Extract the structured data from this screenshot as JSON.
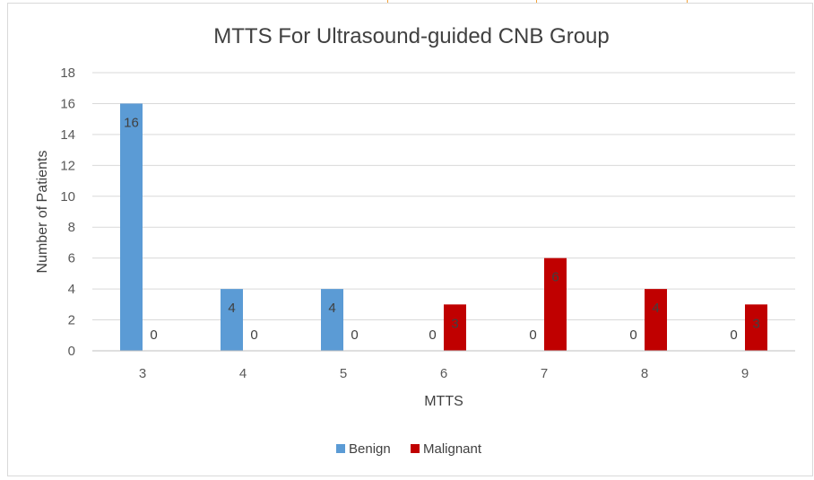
{
  "chart_data": {
    "type": "bar",
    "title": "MTTS For Ultrasound-guided CNB Group",
    "xlabel": "MTTS",
    "ylabel": "Number of Patients",
    "categories": [
      "3",
      "4",
      "5",
      "6",
      "7",
      "8",
      "9"
    ],
    "series": [
      {
        "name": "Benign",
        "color": "#5b9bd5",
        "values": [
          16,
          4,
          4,
          0,
          0,
          0,
          0
        ]
      },
      {
        "name": "Malignant",
        "color": "#c00000",
        "values": [
          0,
          0,
          0,
          3,
          6,
          4,
          3
        ]
      }
    ],
    "ylim": [
      0,
      18
    ],
    "yticks": [
      0,
      2,
      4,
      6,
      8,
      10,
      12,
      14,
      16,
      18
    ],
    "grid": true,
    "legend": "bottom-center"
  }
}
